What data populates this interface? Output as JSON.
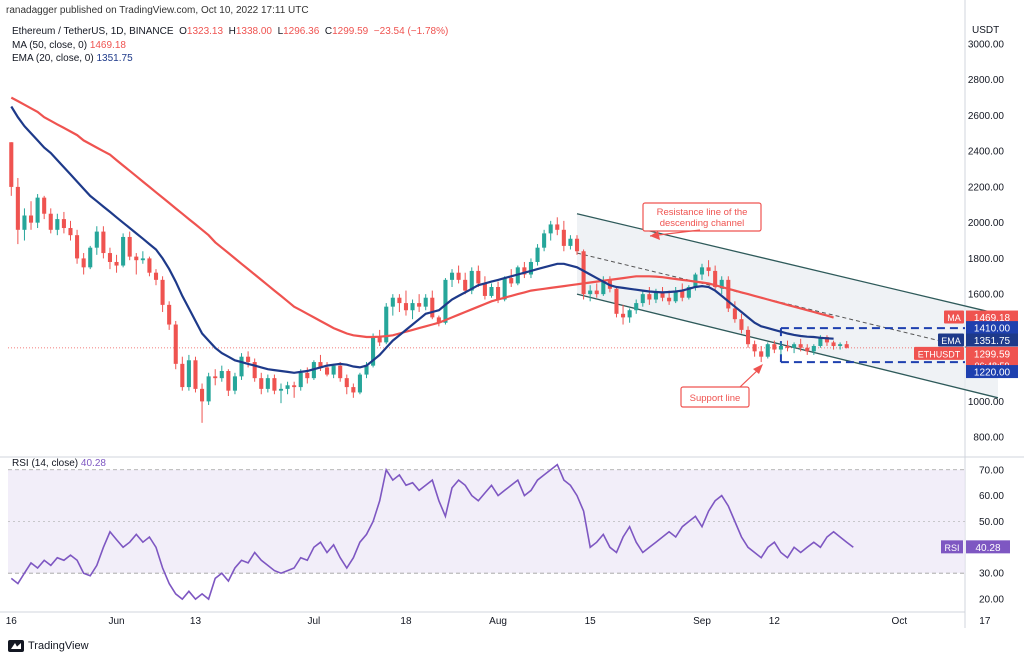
{
  "header": {
    "published": "ranadagger published on TradingView.com, Oct 10, 2022 17:11 UTC",
    "symbol": "Ethereum / TetherUS, 1D, BINANCE",
    "ohlc": {
      "o_label": "O",
      "o": "1323.13",
      "h_label": "H",
      "h": "1338.00",
      "l_label": "L",
      "l": "1296.36",
      "c_label": "C",
      "c": "1299.59",
      "change": "−23.54 (−1.78%)"
    },
    "ma_label": "MA (50, close, 0)",
    "ma_value": "1469.18",
    "ema_label": "EMA (20, close, 0)",
    "ema_value": "1351.75"
  },
  "indicator": {
    "label": "RSI (14, close)",
    "value": "40.28"
  },
  "footer": {
    "brand": "TradingView"
  },
  "colors": {
    "up": "#26a69a",
    "down": "#ef5350",
    "ma": "#ef5350",
    "ema": "#1e3a8a",
    "rsi": "#7e57c2",
    "channel": "#2e5a5a",
    "range": "#1e40af",
    "badge": "#ef5350"
  },
  "chart_data": [
    {
      "type": "candlestick",
      "currency": "USDT",
      "y_ticks": [
        "3000.00",
        "2800.00",
        "2600.00",
        "2400.00",
        "2200.00",
        "2000.00",
        "1800.00",
        "1600.00",
        "1000.00",
        "800.00"
      ],
      "ylim": [
        700,
        3050
      ],
      "x_ticks": [
        {
          "label": "16",
          "i": 0
        },
        {
          "label": "Jun",
          "i": 16
        },
        {
          "label": "13",
          "i": 28
        },
        {
          "label": "Jul",
          "i": 46
        },
        {
          "label": "18",
          "i": 60
        },
        {
          "label": "Aug",
          "i": 74
        },
        {
          "label": "15",
          "i": 88
        },
        {
          "label": "Sep",
          "i": 105
        },
        {
          "label": "12",
          "i": 116
        },
        {
          "label": "Oct",
          "i": 135
        },
        {
          "label": "17",
          "i": 148
        }
      ],
      "price_labels": [
        {
          "text": "MA",
          "value": "1469.18",
          "color": "#ef5350"
        },
        {
          "text": "",
          "value": "1410.00",
          "color": "#1e40af"
        },
        {
          "text": "EMA",
          "value": "1351.75",
          "color": "#1e3a8a"
        },
        {
          "text": "ETHUSDT",
          "value": "1299.59",
          "sub": "06:48:59",
          "color": "#ef5350"
        },
        {
          "text": "",
          "value": "1220.00",
          "color": "#1e40af"
        }
      ],
      "annotations": [
        {
          "text": "Resistance line of the descending channel",
          "lines": [
            "Resistance line of the",
            "descending channel"
          ]
        },
        {
          "text": "Support line",
          "lines": [
            "Support line"
          ]
        }
      ],
      "levels": {
        "range_top": 1410,
        "range_bottom": 1220
      },
      "channel": {
        "upper": [
          [
            86,
            2050
          ],
          [
            150,
            1490
          ]
        ],
        "lower": [
          [
            86,
            1600
          ],
          [
            150,
            1020
          ]
        ],
        "middle": [
          [
            86,
            1830
          ],
          [
            150,
            1260
          ]
        ]
      },
      "ohlc": [
        [
          2450,
          2450,
          2150,
          2200
        ],
        [
          2200,
          2250,
          1880,
          1960
        ],
        [
          1960,
          2080,
          1900,
          2040
        ],
        [
          2040,
          2120,
          1960,
          2000
        ],
        [
          2000,
          2160,
          1970,
          2140
        ],
        [
          2140,
          2150,
          2020,
          2050
        ],
        [
          2050,
          2080,
          1940,
          1960
        ],
        [
          1960,
          2050,
          1930,
          2020
        ],
        [
          2020,
          2060,
          1940,
          1970
        ],
        [
          1970,
          2010,
          1900,
          1930
        ],
        [
          1930,
          1960,
          1770,
          1800
        ],
        [
          1800,
          1830,
          1710,
          1750
        ],
        [
          1750,
          1870,
          1740,
          1860
        ],
        [
          1860,
          1980,
          1820,
          1950
        ],
        [
          1950,
          1980,
          1800,
          1830
        ],
        [
          1830,
          1860,
          1740,
          1780
        ],
        [
          1780,
          1820,
          1720,
          1760
        ],
        [
          1760,
          1940,
          1750,
          1920
        ],
        [
          1920,
          1950,
          1790,
          1810
        ],
        [
          1810,
          1830,
          1710,
          1790
        ],
        [
          1790,
          1840,
          1770,
          1800
        ],
        [
          1800,
          1810,
          1700,
          1720
        ],
        [
          1720,
          1740,
          1650,
          1680
        ],
        [
          1680,
          1700,
          1500,
          1540
        ],
        [
          1540,
          1560,
          1400,
          1430
        ],
        [
          1430,
          1450,
          1180,
          1210
        ],
        [
          1210,
          1250,
          1060,
          1080
        ],
        [
          1080,
          1260,
          1060,
          1230
        ],
        [
          1230,
          1250,
          1050,
          1070
        ],
        [
          1070,
          1100,
          880,
          1000
        ],
        [
          1000,
          1160,
          980,
          1140
        ],
        [
          1140,
          1180,
          1090,
          1130
        ],
        [
          1130,
          1200,
          1110,
          1170
        ],
        [
          1170,
          1180,
          1030,
          1060
        ],
        [
          1060,
          1160,
          1040,
          1140
        ],
        [
          1140,
          1270,
          1120,
          1250
        ],
        [
          1250,
          1280,
          1190,
          1220
        ],
        [
          1220,
          1240,
          1110,
          1130
        ],
        [
          1130,
          1160,
          1040,
          1070
        ],
        [
          1070,
          1150,
          1050,
          1130
        ],
        [
          1130,
          1150,
          1040,
          1060
        ],
        [
          1060,
          1100,
          990,
          1070
        ],
        [
          1070,
          1110,
          1040,
          1090
        ],
        [
          1090,
          1110,
          1020,
          1080
        ],
        [
          1080,
          1180,
          1060,
          1160
        ],
        [
          1160,
          1190,
          1100,
          1130
        ],
        [
          1130,
          1230,
          1120,
          1220
        ],
        [
          1220,
          1260,
          1170,
          1190
        ],
        [
          1190,
          1220,
          1140,
          1150
        ],
        [
          1150,
          1210,
          1130,
          1200
        ],
        [
          1200,
          1220,
          1110,
          1130
        ],
        [
          1130,
          1150,
          1040,
          1080
        ],
        [
          1080,
          1100,
          1020,
          1050
        ],
        [
          1050,
          1160,
          1040,
          1150
        ],
        [
          1150,
          1220,
          1130,
          1200
        ],
        [
          1200,
          1380,
          1190,
          1360
        ],
        [
          1360,
          1400,
          1310,
          1330
        ],
        [
          1330,
          1550,
          1320,
          1530
        ],
        [
          1530,
          1600,
          1480,
          1580
        ],
        [
          1580,
          1600,
          1500,
          1550
        ],
        [
          1550,
          1620,
          1480,
          1510
        ],
        [
          1510,
          1570,
          1460,
          1550
        ],
        [
          1550,
          1600,
          1500,
          1530
        ],
        [
          1530,
          1600,
          1510,
          1580
        ],
        [
          1580,
          1620,
          1460,
          1470
        ],
        [
          1470,
          1480,
          1420,
          1440
        ],
        [
          1440,
          1690,
          1430,
          1680
        ],
        [
          1680,
          1740,
          1640,
          1720
        ],
        [
          1720,
          1760,
          1660,
          1680
        ],
        [
          1680,
          1720,
          1600,
          1620
        ],
        [
          1620,
          1750,
          1600,
          1730
        ],
        [
          1730,
          1760,
          1640,
          1660
        ],
        [
          1660,
          1700,
          1570,
          1590
        ],
        [
          1590,
          1660,
          1580,
          1640
        ],
        [
          1640,
          1670,
          1550,
          1570
        ],
        [
          1570,
          1700,
          1560,
          1690
        ],
        [
          1690,
          1740,
          1640,
          1660
        ],
        [
          1660,
          1760,
          1650,
          1750
        ],
        [
          1750,
          1780,
          1690,
          1710
        ],
        [
          1710,
          1800,
          1690,
          1780
        ],
        [
          1780,
          1880,
          1760,
          1860
        ],
        [
          1860,
          1960,
          1840,
          1940
        ],
        [
          1940,
          2010,
          1900,
          1990
        ],
        [
          1990,
          2030,
          1930,
          1960
        ],
        [
          1960,
          2010,
          1840,
          1870
        ],
        [
          1870,
          1930,
          1850,
          1910
        ],
        [
          1910,
          1930,
          1820,
          1840
        ],
        [
          1840,
          1850,
          1570,
          1600
        ],
        [
          1600,
          1650,
          1560,
          1620
        ],
        [
          1620,
          1660,
          1580,
          1600
        ],
        [
          1600,
          1700,
          1590,
          1680
        ],
        [
          1680,
          1700,
          1610,
          1630
        ],
        [
          1630,
          1640,
          1470,
          1490
        ],
        [
          1490,
          1540,
          1430,
          1470
        ],
        [
          1470,
          1520,
          1440,
          1510
        ],
        [
          1510,
          1570,
          1490,
          1550
        ],
        [
          1550,
          1620,
          1530,
          1600
        ],
        [
          1600,
          1640,
          1540,
          1570
        ],
        [
          1570,
          1630,
          1550,
          1610
        ],
        [
          1610,
          1640,
          1560,
          1580
        ],
        [
          1580,
          1620,
          1540,
          1560
        ],
        [
          1560,
          1640,
          1550,
          1620
        ],
        [
          1620,
          1660,
          1560,
          1580
        ],
        [
          1580,
          1650,
          1570,
          1640
        ],
        [
          1640,
          1720,
          1620,
          1710
        ],
        [
          1710,
          1770,
          1680,
          1750
        ],
        [
          1750,
          1790,
          1700,
          1730
        ],
        [
          1730,
          1760,
          1620,
          1640
        ],
        [
          1640,
          1700,
          1600,
          1680
        ],
        [
          1680,
          1700,
          1500,
          1520
        ],
        [
          1520,
          1560,
          1440,
          1460
        ],
        [
          1460,
          1490,
          1380,
          1400
        ],
        [
          1400,
          1420,
          1300,
          1320
        ],
        [
          1320,
          1340,
          1250,
          1280
        ],
        [
          1280,
          1310,
          1220,
          1250
        ],
        [
          1250,
          1330,
          1240,
          1320
        ],
        [
          1320,
          1340,
          1270,
          1290
        ],
        [
          1290,
          1330,
          1260,
          1310
        ],
        [
          1310,
          1340,
          1280,
          1300
        ],
        [
          1300,
          1330,
          1270,
          1320
        ],
        [
          1320,
          1350,
          1280,
          1300
        ],
        [
          1300,
          1320,
          1260,
          1280
        ],
        [
          1280,
          1320,
          1260,
          1310
        ],
        [
          1310,
          1370,
          1300,
          1360
        ],
        [
          1360,
          1370,
          1310,
          1330
        ],
        [
          1330,
          1340,
          1290,
          1310
        ],
        [
          1310,
          1330,
          1290,
          1320
        ],
        [
          1320,
          1338,
          1296,
          1300
        ]
      ],
      "ma50_y": [
        2700,
        2680,
        2660,
        2640,
        2620,
        2590,
        2570,
        2550,
        2530,
        2510,
        2490,
        2460,
        2440,
        2420,
        2400,
        2380,
        2350,
        2320,
        2290,
        2260,
        2230,
        2200,
        2170,
        2140,
        2110,
        2080,
        2050,
        2020,
        1990,
        1960,
        1930,
        1890,
        1860,
        1830,
        1800,
        1770,
        1740,
        1710,
        1680,
        1650,
        1620,
        1590,
        1560,
        1530,
        1510,
        1490,
        1470,
        1450,
        1430,
        1410,
        1395,
        1380,
        1370,
        1365,
        1360,
        1360,
        1362,
        1365,
        1370,
        1380,
        1390,
        1400,
        1410,
        1420,
        1430,
        1440,
        1455,
        1470,
        1485,
        1500,
        1515,
        1530,
        1545,
        1560,
        1570,
        1580,
        1590,
        1600,
        1610,
        1620,
        1625,
        1630,
        1635,
        1640,
        1645,
        1650,
        1655,
        1660,
        1665,
        1670,
        1675,
        1680,
        1685,
        1690,
        1695,
        1700,
        1700,
        1700,
        1698,
        1695,
        1690,
        1685,
        1680,
        1675,
        1670,
        1665,
        1660,
        1650,
        1640,
        1630,
        1620,
        1610,
        1600,
        1590,
        1580,
        1570,
        1560,
        1550,
        1540,
        1530,
        1520,
        1510,
        1500,
        1490,
        1480,
        1469
      ],
      "ema20_y": [
        2650,
        2590,
        2540,
        2500,
        2460,
        2420,
        2390,
        2350,
        2310,
        2270,
        2230,
        2190,
        2150,
        2120,
        2090,
        2060,
        2030,
        2000,
        1970,
        1940,
        1910,
        1880,
        1850,
        1800,
        1740,
        1670,
        1590,
        1520,
        1450,
        1380,
        1340,
        1300,
        1270,
        1250,
        1230,
        1220,
        1210,
        1200,
        1190,
        1180,
        1175,
        1170,
        1165,
        1160,
        1165,
        1170,
        1180,
        1190,
        1200,
        1205,
        1210,
        1205,
        1195,
        1190,
        1200,
        1230,
        1260,
        1300,
        1340,
        1370,
        1400,
        1430,
        1460,
        1490,
        1500,
        1510,
        1540,
        1570,
        1590,
        1610,
        1630,
        1650,
        1660,
        1670,
        1680,
        1690,
        1700,
        1710,
        1720,
        1730,
        1740,
        1750,
        1760,
        1770,
        1770,
        1760,
        1750,
        1730,
        1710,
        1690,
        1670,
        1650,
        1640,
        1635,
        1630,
        1625,
        1620,
        1615,
        1612,
        1610,
        1612,
        1615,
        1620,
        1630,
        1640,
        1645,
        1640,
        1620,
        1590,
        1560,
        1530,
        1500,
        1470,
        1440,
        1420,
        1410,
        1400,
        1390,
        1380,
        1372,
        1366,
        1362,
        1360,
        1356,
        1353,
        1351
      ],
      "last_price": 1299.59
    },
    {
      "type": "line",
      "name": "RSI",
      "y_ticks": [
        "70.00",
        "60.00",
        "50.00",
        "30.00",
        "20.00"
      ],
      "ylim": [
        15,
        73
      ],
      "band": [
        30,
        70
      ],
      "values": [
        28,
        26,
        30,
        34,
        32,
        35,
        33,
        36,
        35,
        37,
        35,
        30,
        29,
        33,
        40,
        46,
        43,
        40,
        42,
        45,
        42,
        44,
        40,
        32,
        26,
        22,
        20,
        23,
        20,
        22,
        20,
        28,
        30,
        27,
        32,
        35,
        34,
        38,
        35,
        33,
        31,
        30,
        31,
        32,
        36,
        35,
        40,
        42,
        38,
        41,
        36,
        32,
        36,
        42,
        45,
        50,
        58,
        70,
        66,
        68,
        64,
        65,
        62,
        64,
        66,
        58,
        52,
        63,
        66,
        64,
        60,
        58,
        61,
        64,
        60,
        62,
        64,
        66,
        60,
        62,
        66,
        68,
        70,
        72,
        66,
        64,
        60,
        54,
        40,
        42,
        45,
        40,
        38,
        44,
        48,
        42,
        38,
        40,
        42,
        44,
        46,
        44,
        48,
        50,
        52,
        48,
        54,
        58,
        60,
        56,
        50,
        44,
        40,
        38,
        36,
        40,
        42,
        38,
        36,
        40,
        38,
        40,
        42,
        40,
        44,
        46,
        44,
        42,
        40
      ]
    }
  ]
}
